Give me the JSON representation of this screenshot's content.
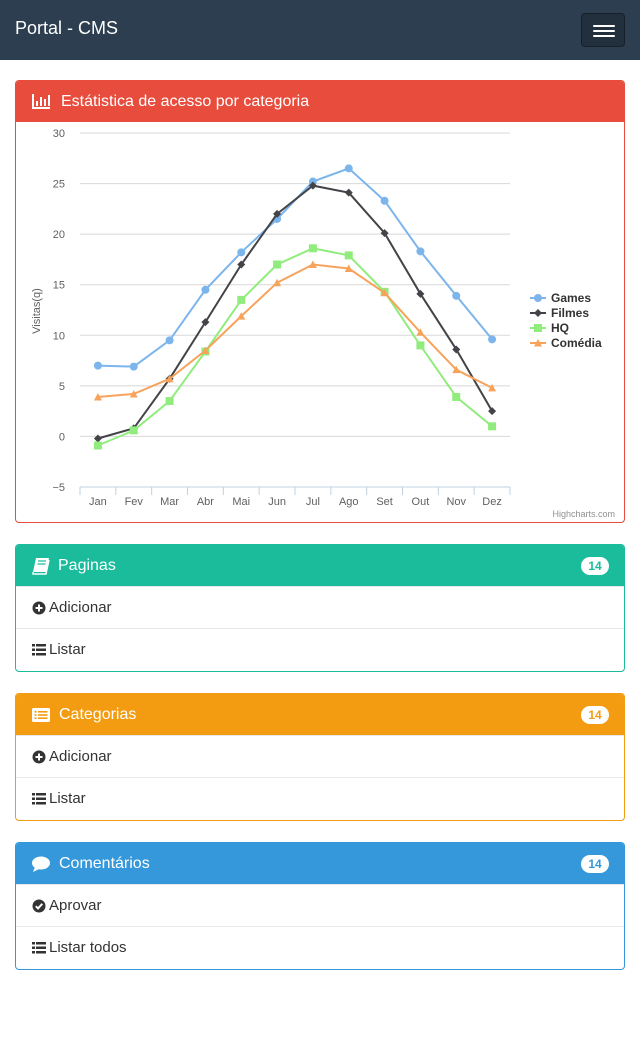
{
  "navbar": {
    "brand": "Portal - CMS"
  },
  "chart_panel": {
    "title": "Estátistica de acesso por categoria",
    "credits": "Highcharts.com"
  },
  "chart_data": {
    "type": "line",
    "title": "",
    "xlabel": "",
    "ylabel": "Visitas(q)",
    "ylim": [
      -5,
      30
    ],
    "yticks": [
      "30",
      "25",
      "20",
      "15",
      "10",
      "5",
      "0",
      "−5"
    ],
    "categories": [
      "Jan",
      "Fev",
      "Mar",
      "Abr",
      "Mai",
      "Jun",
      "Jul",
      "Ago",
      "Set",
      "Out",
      "Nov",
      "Dez"
    ],
    "grid": true,
    "legend": "right",
    "series": [
      {
        "name": "Games",
        "color": "#7cb5ec",
        "marker": "circle",
        "values": [
          7.0,
          6.9,
          9.5,
          14.5,
          18.2,
          21.5,
          25.2,
          26.5,
          23.3,
          18.3,
          13.9,
          9.6
        ]
      },
      {
        "name": "Filmes",
        "color": "#434348",
        "marker": "diamond",
        "values": [
          -0.2,
          0.8,
          5.7,
          11.3,
          17.0,
          22.0,
          24.8,
          24.1,
          20.1,
          14.1,
          8.6,
          2.5
        ]
      },
      {
        "name": "HQ",
        "color": "#90ed7d",
        "marker": "square",
        "values": [
          -0.9,
          0.6,
          3.5,
          8.4,
          13.5,
          17.0,
          18.6,
          17.9,
          14.3,
          9.0,
          3.9,
          1.0
        ]
      },
      {
        "name": "Comédia",
        "color": "#f7a35c",
        "marker": "triangle",
        "values": [
          3.9,
          4.2,
          5.7,
          8.5,
          11.9,
          15.2,
          17.0,
          16.6,
          14.2,
          10.3,
          6.6,
          4.8
        ]
      }
    ]
  },
  "panels": {
    "pages": {
      "title": "Paginas",
      "badge": "14",
      "items": [
        {
          "label": "Adicionar",
          "icon": "plus-circle-icon"
        },
        {
          "label": "Listar",
          "icon": "list-icon"
        }
      ]
    },
    "categories": {
      "title": "Categorias",
      "badge": "14",
      "items": [
        {
          "label": "Adicionar",
          "icon": "plus-circle-icon"
        },
        {
          "label": "Listar",
          "icon": "list-icon"
        }
      ]
    },
    "comments": {
      "title": "Comentários",
      "badge": "14",
      "items": [
        {
          "label": "Aprovar",
          "icon": "check-circle-icon"
        },
        {
          "label": "Listar todos",
          "icon": "list-icon"
        }
      ]
    }
  }
}
